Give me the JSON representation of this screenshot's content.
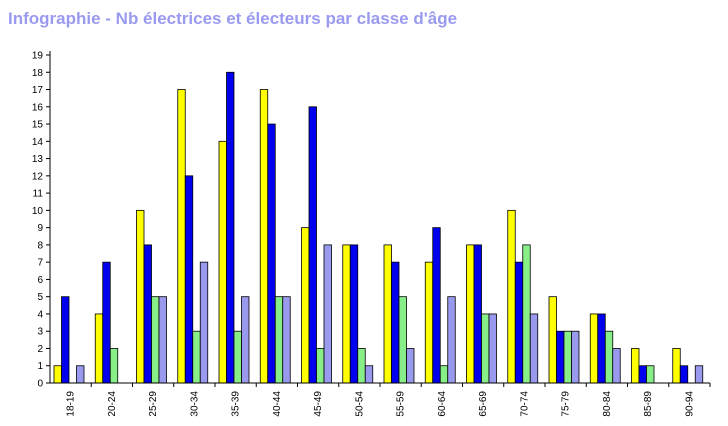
{
  "chart_data": {
    "type": "bar",
    "title": "Infographie - Nb électrices et électeurs par classe d'âge",
    "categories": [
      "18-19",
      "20-24",
      "25-29",
      "30-34",
      "35-39",
      "40-44",
      "45-49",
      "50-54",
      "55-59",
      "60-64",
      "65-69",
      "70-74",
      "75-79",
      "80-84",
      "85-89",
      "90-94"
    ],
    "series": [
      {
        "color": "#ffff00",
        "values": [
          1,
          4,
          10,
          17,
          14,
          17,
          9,
          8,
          8,
          7,
          8,
          10,
          5,
          4,
          2,
          2
        ]
      },
      {
        "color": "#0000ee",
        "values": [
          5,
          7,
          8,
          12,
          18,
          15,
          16,
          8,
          7,
          9,
          8,
          7,
          3,
          4,
          1,
          1
        ]
      },
      {
        "color": "#88ee88",
        "values": [
          0,
          2,
          5,
          3,
          3,
          5,
          2,
          2,
          5,
          1,
          4,
          8,
          3,
          3,
          1,
          0
        ]
      },
      {
        "color": "#9999ee",
        "values": [
          1,
          0,
          5,
          7,
          5,
          5,
          8,
          1,
          2,
          5,
          4,
          4,
          3,
          2,
          0,
          1
        ]
      }
    ],
    "ylim": [
      0,
      19
    ],
    "yticks": [
      0,
      1,
      2,
      3,
      4,
      5,
      6,
      7,
      8,
      9,
      10,
      11,
      12,
      13,
      14,
      15,
      16,
      17,
      18,
      19
    ],
    "grid": false,
    "xlabel": "",
    "ylabel": ""
  }
}
